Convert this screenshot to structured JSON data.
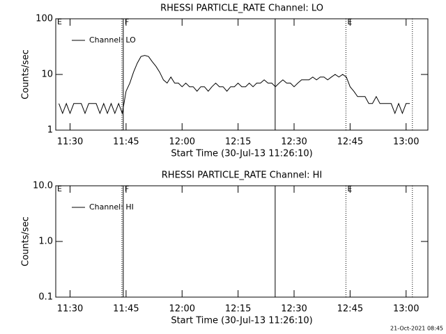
{
  "chart_data": [
    {
      "type": "line",
      "title": "RHESSI PARTICLE_RATE Channel: LO",
      "xlabel": "Start Time (30-Jul-13 11:26:10)",
      "ylabel": "Counts/sec",
      "log_y": true,
      "xlim": [
        "11:26:10",
        "13:05:50"
      ],
      "ylim": [
        1,
        100
      ],
      "xticks": [
        "11:30",
        "11:45",
        "12:00",
        "12:15",
        "12:30",
        "12:45",
        "13:00"
      ],
      "yticks": [
        1,
        10,
        100
      ],
      "x": [
        "11:27",
        "11:28",
        "11:29",
        "11:30",
        "11:31",
        "11:32",
        "11:33",
        "11:34",
        "11:35",
        "11:36",
        "11:37",
        "11:38",
        "11:39",
        "11:40",
        "11:41",
        "11:42",
        "11:43",
        "11:44",
        "11:45",
        "11:46",
        "11:47",
        "11:48",
        "11:49",
        "11:50",
        "11:51",
        "11:52",
        "11:53",
        "11:54",
        "11:55",
        "11:56",
        "11:57",
        "11:58",
        "11:59",
        "12:00",
        "12:01",
        "12:02",
        "12:03",
        "12:04",
        "12:05",
        "12:06",
        "12:07",
        "12:08",
        "12:09",
        "12:10",
        "12:11",
        "12:12",
        "12:13",
        "12:14",
        "12:15",
        "12:16",
        "12:17",
        "12:18",
        "12:19",
        "12:20",
        "12:21",
        "12:22",
        "12:23",
        "12:24",
        "12:25",
        "12:26",
        "12:27",
        "12:28",
        "12:29",
        "12:30",
        "12:31",
        "12:32",
        "12:33",
        "12:34",
        "12:35",
        "12:36",
        "12:37",
        "12:38",
        "12:39",
        "12:40",
        "12:41",
        "12:42",
        "12:43",
        "12:44",
        "12:45",
        "12:46",
        "12:47",
        "12:48",
        "12:49",
        "12:50",
        "12:51",
        "12:52",
        "12:53",
        "12:54",
        "12:55",
        "12:56",
        "12:57",
        "12:58",
        "12:59",
        "13:00",
        "13:01"
      ],
      "series": [
        {
          "name": "Channel: LO",
          "color": "#000000",
          "values": [
            3,
            2,
            3,
            2,
            3,
            3,
            3,
            2,
            3,
            3,
            3,
            2,
            3,
            2,
            3,
            2,
            3,
            2,
            5,
            7,
            11,
            16,
            21,
            22,
            21,
            17,
            14,
            11,
            8,
            7,
            9,
            7,
            7,
            6,
            7,
            6,
            6,
            5,
            6,
            6,
            5,
            6,
            7,
            6,
            6,
            5,
            6,
            6,
            7,
            6,
            6,
            7,
            6,
            7,
            7,
            8,
            7,
            7,
            6,
            7,
            8,
            7,
            7,
            6,
            7,
            8,
            8,
            8,
            9,
            8,
            9,
            9,
            8,
            9,
            10,
            9,
            10,
            9,
            6,
            5,
            4,
            4,
            4,
            3,
            3,
            4,
            3,
            3,
            3,
            3,
            2,
            3,
            2,
            3,
            3
          ]
        }
      ],
      "markers": [
        {
          "x": "11:26:10",
          "style": "dotted",
          "label": "E"
        },
        {
          "x": "11:43:53",
          "style": "dotted"
        },
        {
          "x": "11:44:15",
          "style": "solid",
          "label": "F"
        },
        {
          "x": "12:24:56",
          "style": "solid"
        },
        {
          "x": "12:43:53",
          "style": "dotted",
          "label": "E"
        },
        {
          "x": "13:01:41",
          "style": "dotted"
        }
      ]
    },
    {
      "type": "line",
      "title": "RHESSI PARTICLE_RATE Channel: HI",
      "xlabel": "Start Time (30-Jul-13 11:26:10)",
      "ylabel": "Counts/sec",
      "log_y": true,
      "xlim": [
        "11:26:10",
        "13:05:50"
      ],
      "ylim": [
        0.1,
        10
      ],
      "xticks": [
        "11:30",
        "11:45",
        "12:00",
        "12:15",
        "12:30",
        "12:45",
        "13:00"
      ],
      "yticks": [
        {
          "value": 0.1,
          "label": "0.1"
        },
        {
          "value": 1,
          "label": "1.0"
        },
        {
          "value": 10,
          "label": "10.0"
        }
      ],
      "x": [],
      "series": [
        {
          "name": "Channel: HI",
          "color": "#000000",
          "values": []
        }
      ],
      "markers": [
        {
          "x": "11:26:10",
          "style": "dotted",
          "label": "E"
        },
        {
          "x": "11:43:53",
          "style": "dotted"
        },
        {
          "x": "11:44:15",
          "style": "solid",
          "label": "F"
        },
        {
          "x": "12:24:56",
          "style": "solid"
        },
        {
          "x": "12:43:53",
          "style": "dotted",
          "label": "E"
        },
        {
          "x": "13:01:41",
          "style": "dotted"
        }
      ]
    }
  ],
  "footer": "21-Oct-2021 08:45"
}
